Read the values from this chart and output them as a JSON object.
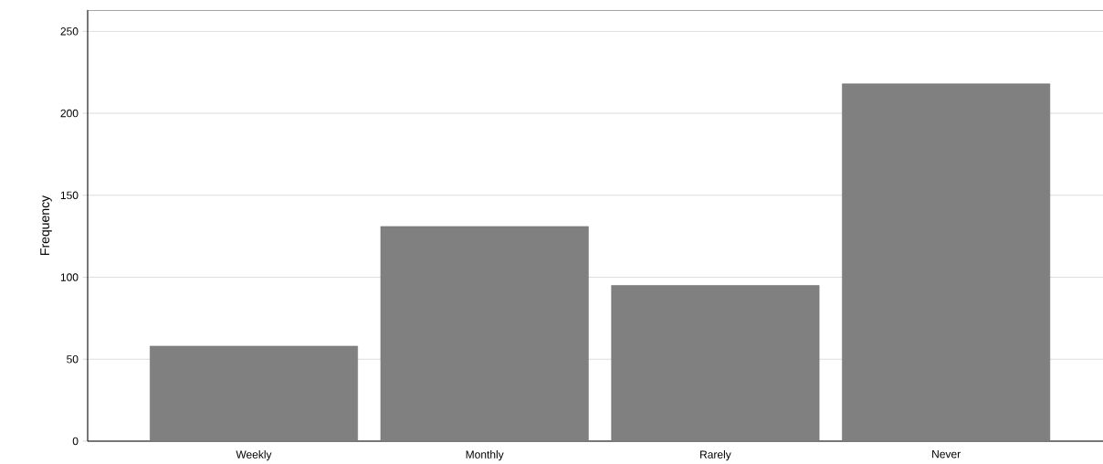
{
  "chart_data": {
    "type": "bar",
    "ylabel": "Frequency",
    "categories": [
      "Weekly",
      "Monthly",
      "Rarely",
      "Never"
    ],
    "values": [
      58,
      131,
      95,
      218
    ],
    "color": "#808080",
    "ylim": [
      0,
      263
    ],
    "yticks": [
      0,
      50,
      100,
      150,
      200,
      250
    ],
    "grid": "y"
  }
}
